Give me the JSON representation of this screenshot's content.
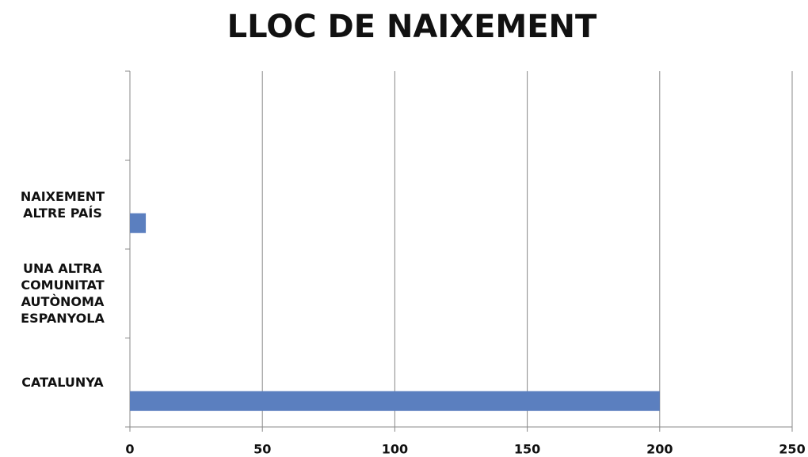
{
  "chart_data": {
    "type": "barh",
    "title": "LLOC DE NAIXEMENT",
    "categories": [
      "CATALUNYA",
      "UNA ALTRA COMUNITAT AUTÒNOMA ESPANYOLA",
      "NAIXEMENT ALTRE PAÍS",
      null
    ],
    "values": [
      200,
      0,
      6,
      null
    ],
    "color": "#5b7fbf",
    "xlim": [
      0,
      250
    ],
    "xticks": [
      0,
      50,
      100,
      150,
      200,
      250
    ],
    "grid": true
  }
}
